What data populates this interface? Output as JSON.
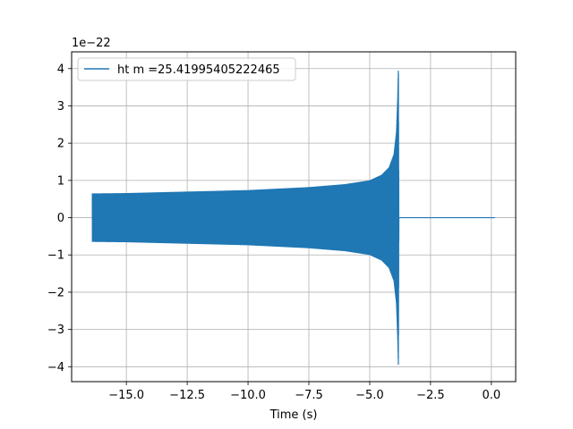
{
  "chart_data": {
    "type": "line",
    "xlabel": "Time (s)",
    "ylabel": "",
    "offset_text": "1e−22",
    "xlim": [
      -17.25,
      1.0
    ],
    "ylim": [
      -4.4,
      4.45
    ],
    "xticks": [
      -15.0,
      -12.5,
      -10.0,
      -7.5,
      -5.0,
      -2.5,
      0.0
    ],
    "xtick_labels": [
      "−15.0",
      "−12.5",
      "−10.0",
      "−7.5",
      "−5.0",
      "−2.5",
      "0.0"
    ],
    "yticks": [
      -4,
      -3,
      -2,
      -1,
      0,
      1,
      2,
      3,
      4
    ],
    "ytick_labels": [
      "−4",
      "−3",
      "−2",
      "−1",
      "0",
      "1",
      "2",
      "3",
      "4"
    ],
    "grid": true,
    "legend_position": "upper-left",
    "series": [
      {
        "name": "ht m =25.41995405222465",
        "color": "#1f77b4",
        "description_points": {
          "x": [
            -16.4,
            -15.0,
            -12.5,
            -10.0,
            -7.5,
            -6.0,
            -5.0,
            -4.5,
            -4.2,
            -4.0,
            -3.9,
            -3.85,
            -3.82,
            -3.8,
            0.15
          ],
          "envelope_upper": [
            0.65,
            0.66,
            0.7,
            0.74,
            0.82,
            0.9,
            1.0,
            1.15,
            1.35,
            1.7,
            2.3,
            3.2,
            4.1,
            0.0,
            0.0
          ],
          "envelope_lower": [
            -0.65,
            -0.66,
            -0.7,
            -0.74,
            -0.82,
            -0.9,
            -1.0,
            -1.15,
            -1.35,
            -1.7,
            -2.3,
            -3.2,
            -4.0,
            0.0,
            0.0
          ]
        }
      }
    ]
  }
}
